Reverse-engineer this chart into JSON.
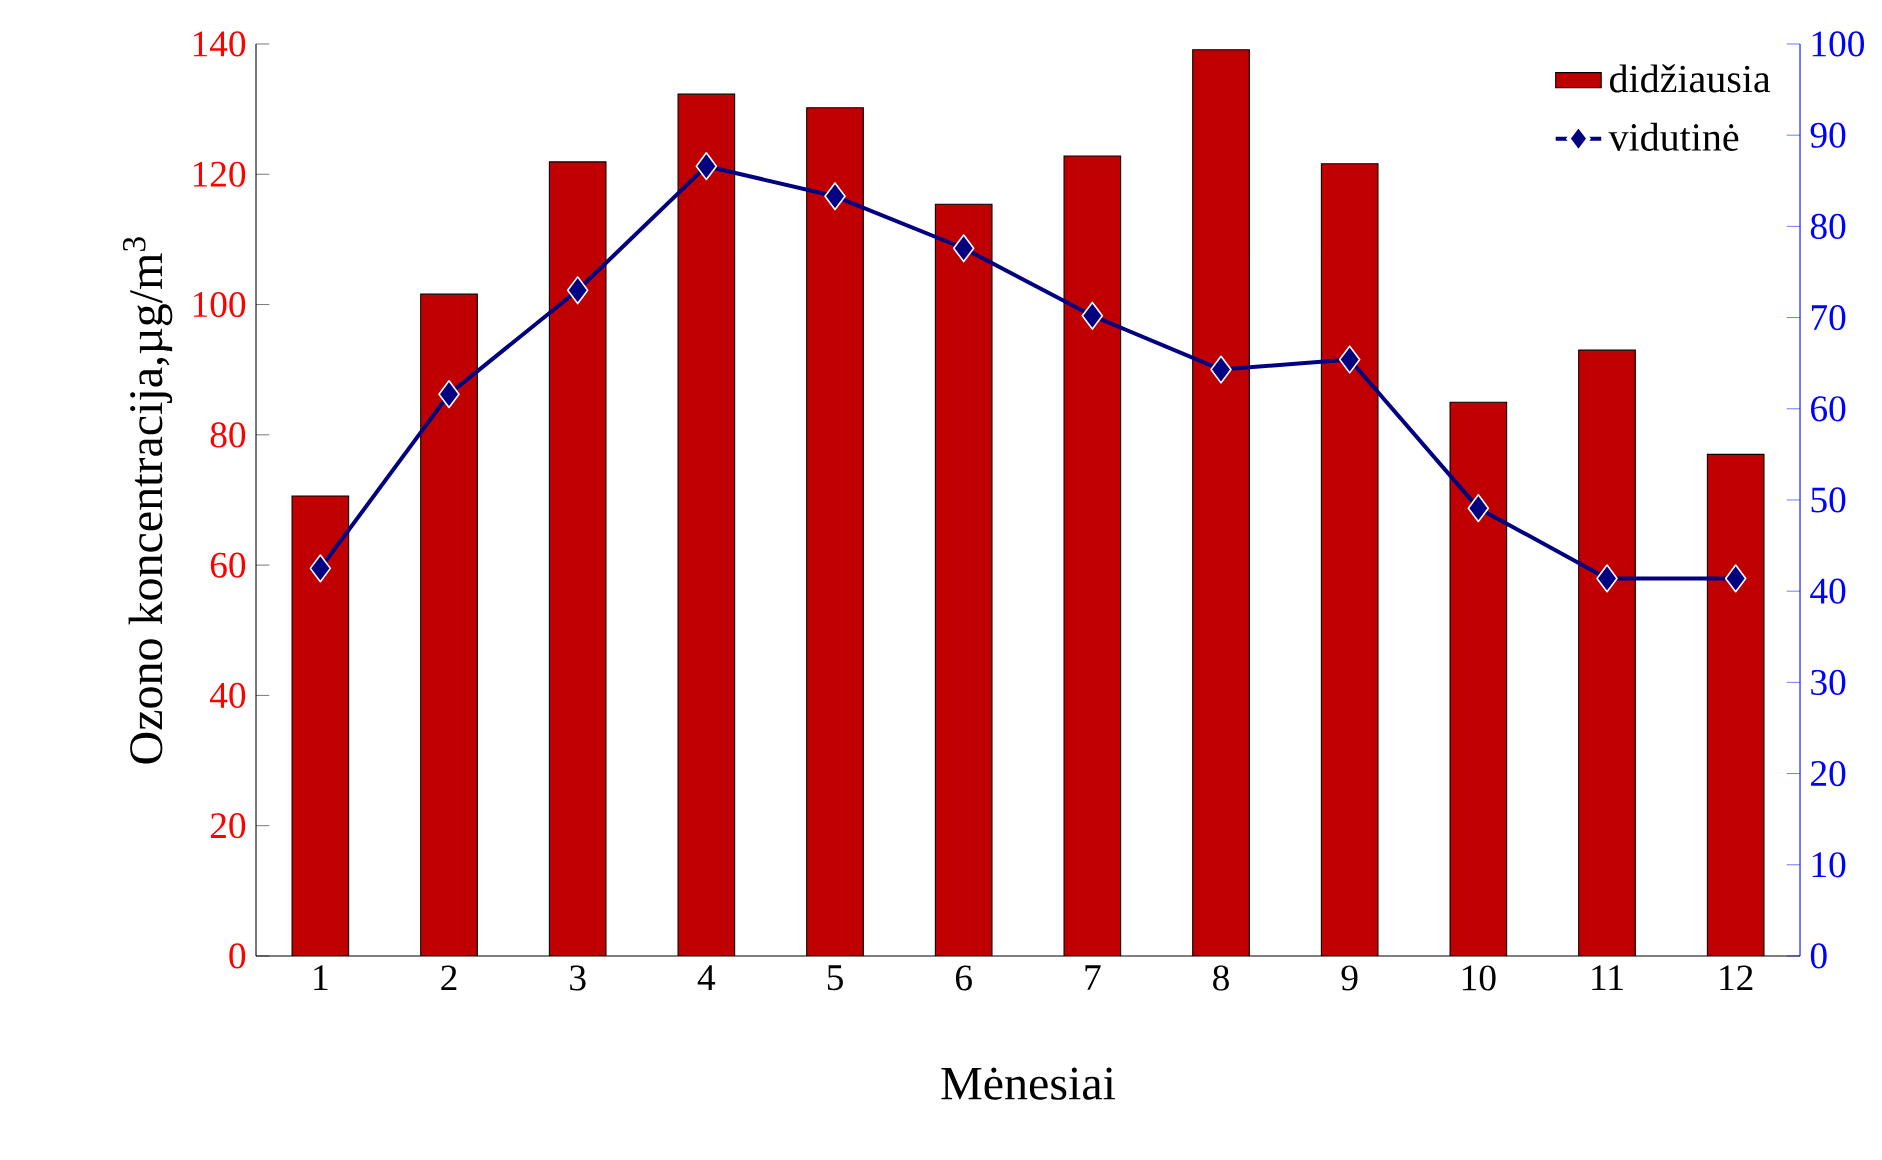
{
  "chart_data": {
    "type": "bar",
    "xlabel": "Mėnesiai",
    "ylabel": "Ozono koncentracija,µg/m$^{3}$",
    "categories": [
      "1",
      "2",
      "3",
      "4",
      "5",
      "6",
      "7",
      "8",
      "9",
      "10",
      "11",
      "12"
    ],
    "series": [
      {
        "name": "didžiausia",
        "color": "#c00000",
        "values": [
          70.6,
          101.6,
          121.9,
          132.3,
          130.2,
          115.4,
          122.8,
          139.1,
          121.6,
          85,
          93,
          77
        ]
      },
      {
        "name": "vidutinė",
        "type": "line",
        "axis": "y2",
        "color": "#000080",
        "marker": "diamond",
        "line_style": "solid",
        "values": [
          42.5,
          61.6,
          73,
          86.6,
          83.3,
          77.6,
          70.2,
          64.3,
          65.4,
          49.1,
          41.4,
          41.4
        ]
      }
    ],
    "ylim": [
      0,
      140
    ],
    "yticks": [
      0,
      20,
      40,
      60,
      80,
      100,
      120,
      140
    ],
    "y2lim": [
      0,
      100
    ],
    "y2ticks": [
      0,
      10,
      20,
      30,
      40,
      50,
      60,
      70,
      80,
      90,
      100
    ],
    "legend": "top right",
    "grid": false
  }
}
